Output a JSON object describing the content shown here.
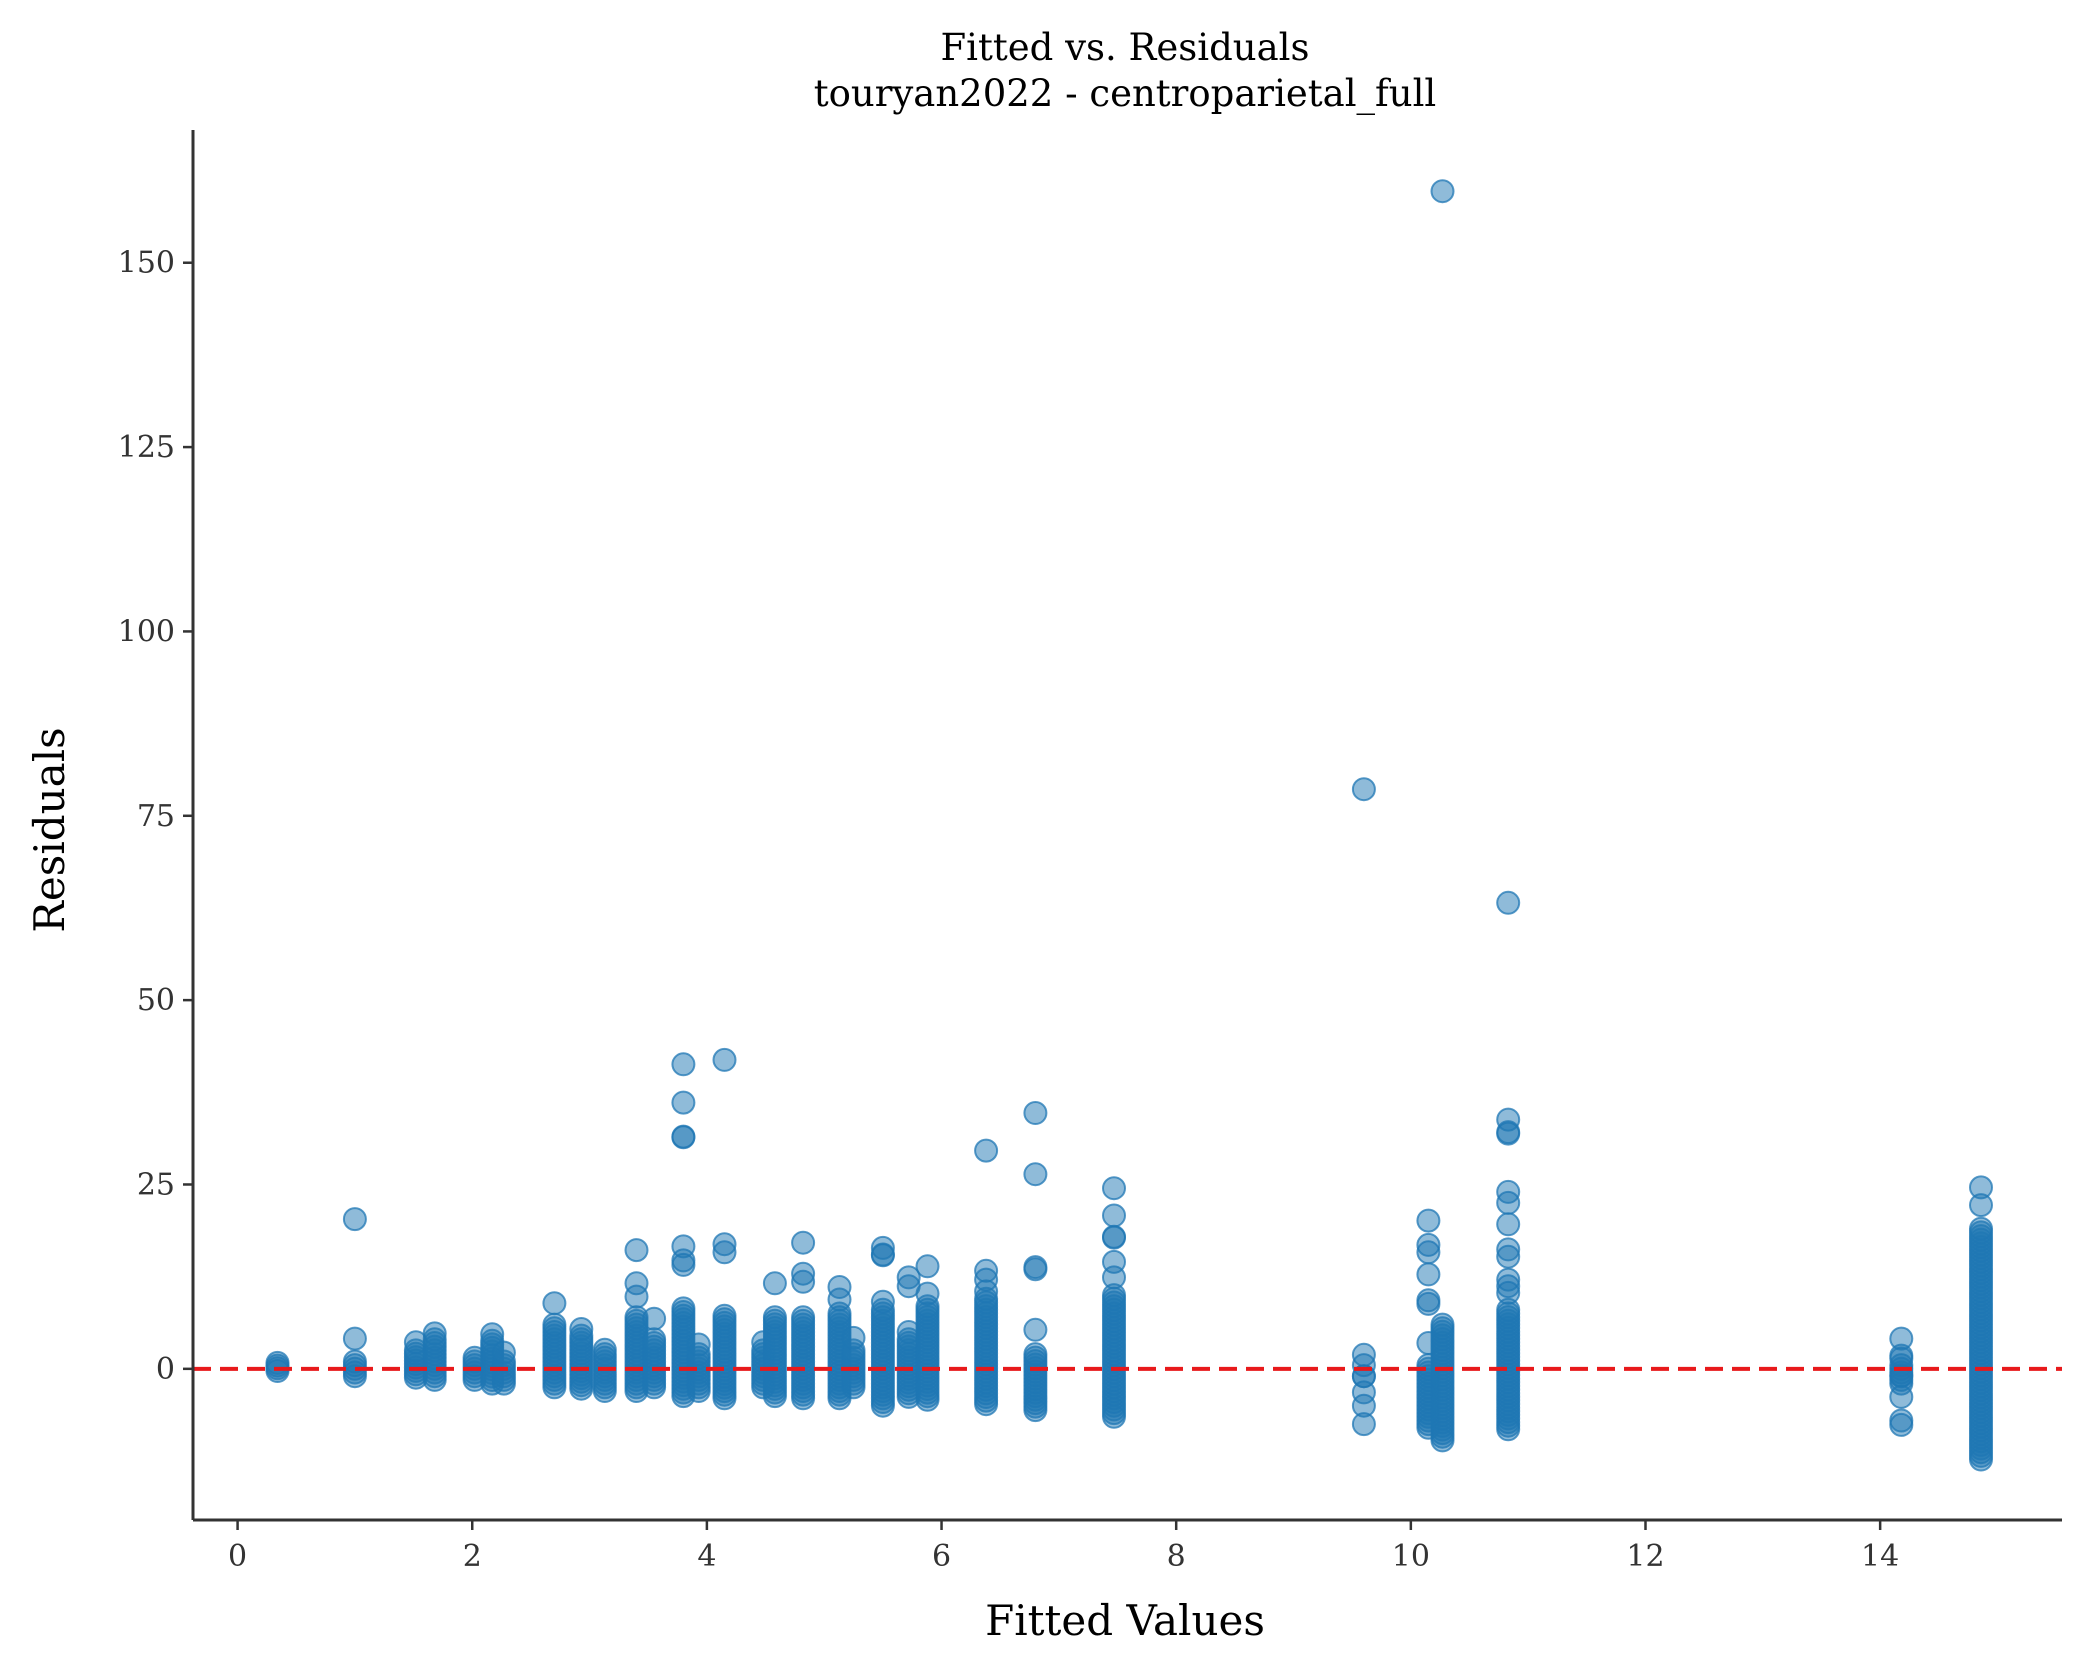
{
  "chart_data": {
    "type": "scatter",
    "title": "Fitted vs. Residuals",
    "subtitle": "touryan2022 - centroparietal_full",
    "xlabel": "Fitted Values",
    "ylabel": "Residuals",
    "xlim": [
      -0.38,
      15.55
    ],
    "ylim": [
      -20.5,
      168
    ],
    "xticks": [
      0,
      2,
      4,
      6,
      8,
      10,
      12,
      14
    ],
    "yticks": [
      0,
      25,
      50,
      75,
      100,
      125,
      150
    ],
    "grid": false,
    "point_color": "#1f77b4",
    "point_opacity": 0.5,
    "reference_line": {
      "y": 0,
      "color": "#e8191b",
      "style": "dashed"
    },
    "columns": [
      {
        "x": 0.34,
        "outliers": [],
        "low": -0.3,
        "high": 0.8
      },
      {
        "x": 1.0,
        "outliers": [
          20.3,
          4.1
        ],
        "low": -1.0,
        "high": 1.0
      },
      {
        "x": 1.52,
        "outliers": [
          3.6
        ],
        "low": -1.2,
        "high": 2.5
      },
      {
        "x": 1.68,
        "outliers": [
          4.8
        ],
        "low": -1.5,
        "high": 4.0
      },
      {
        "x": 2.02,
        "outliers": [
          1.5
        ],
        "low": -1.5,
        "high": 1.0
      },
      {
        "x": 2.17,
        "outliers": [
          4.7
        ],
        "low": -2.0,
        "high": 3.8
      },
      {
        "x": 2.27,
        "outliers": [
          2.2
        ],
        "low": -2.0,
        "high": 1.0
      },
      {
        "x": 2.7,
        "outliers": [
          8.9
        ],
        "low": -2.5,
        "high": 6.0
      },
      {
        "x": 2.93,
        "outliers": [
          5.4
        ],
        "low": -2.7,
        "high": 4.5
      },
      {
        "x": 3.13,
        "outliers": [
          2.6
        ],
        "low": -3.0,
        "high": 2.0
      },
      {
        "x": 3.4,
        "outliers": [
          16.1,
          11.6,
          9.8
        ],
        "low": -3.0,
        "high": 7.0
      },
      {
        "x": 3.55,
        "outliers": [
          6.8
        ],
        "low": -2.5,
        "high": 4.0
      },
      {
        "x": 3.8,
        "outliers": [
          41.3,
          36.1,
          31.4,
          31.5,
          16.6,
          14.7,
          14.1
        ],
        "low": -3.7,
        "high": 8.2
      },
      {
        "x": 3.93,
        "outliers": [
          3.3
        ],
        "low": -3.0,
        "high": 2.0
      },
      {
        "x": 4.15,
        "outliers": [
          41.9,
          16.9,
          15.8
        ],
        "low": -4.0,
        "high": 7.2
      },
      {
        "x": 4.48,
        "outliers": [
          3.6
        ],
        "low": -2.5,
        "high": 2.5
      },
      {
        "x": 4.58,
        "outliers": [
          11.6
        ],
        "low": -3.7,
        "high": 7.0
      },
      {
        "x": 4.82,
        "outliers": [
          17.1,
          12.9,
          11.8
        ],
        "low": -4.0,
        "high": 7.0
      },
      {
        "x": 5.13,
        "outliers": [
          11.1,
          9.4
        ],
        "low": -4.0,
        "high": 7.5
      },
      {
        "x": 5.25,
        "outliers": [
          4.2
        ],
        "low": -2.5,
        "high": 2.5
      },
      {
        "x": 5.5,
        "outliers": [
          16.4,
          15.4,
          15.5,
          9.1
        ],
        "low": -5.0,
        "high": 8.0
      },
      {
        "x": 5.72,
        "outliers": [
          12.4,
          11.2,
          5.0
        ],
        "low": -3.8,
        "high": 4.0
      },
      {
        "x": 5.88,
        "outliers": [
          13.9,
          10.2
        ],
        "low": -4.2,
        "high": 8.5
      },
      {
        "x": 6.38,
        "outliers": [
          29.6,
          13.3,
          12.1,
          10.5
        ],
        "low": -4.8,
        "high": 9.5
      },
      {
        "x": 6.8,
        "outliers": [
          34.7,
          26.4,
          13.8,
          13.5,
          5.3
        ],
        "low": -5.6,
        "high": 2.0
      },
      {
        "x": 7.47,
        "outliers": [
          24.5,
          20.8,
          17.8,
          17.9,
          14.5,
          12.4
        ],
        "low": -6.5,
        "high": 10.0
      },
      {
        "x": 9.6,
        "outliers": [
          78.6,
          1.9,
          0.5,
          -3.2,
          -5.0,
          -7.5
        ],
        "low": -1.0,
        "high": -1.0
      },
      {
        "x": 10.15,
        "outliers": [
          20.1,
          16.8,
          15.8,
          12.8,
          9.3,
          8.8,
          3.5
        ],
        "low": -8.0,
        "high": 0.5
      },
      {
        "x": 10.27,
        "outliers": [
          159.7
        ],
        "low": -9.7,
        "high": 6.0
      },
      {
        "x": 10.83,
        "outliers": [
          63.2,
          33.8,
          32.1,
          31.9,
          24.0,
          22.5,
          19.6,
          16.2,
          15.2,
          12.1,
          11.2,
          10.3
        ],
        "low": -8.2,
        "high": 8.0
      },
      {
        "x": 14.18,
        "outliers": [
          4.1,
          1.8,
          1.4,
          -0.9,
          -3.8,
          -7.0,
          -7.6
        ],
        "low": -2.0,
        "high": 0.5
      },
      {
        "x": 14.86,
        "outliers": [
          24.6,
          22.2
        ],
        "low": -12.3,
        "high": 19.0
      }
    ]
  }
}
